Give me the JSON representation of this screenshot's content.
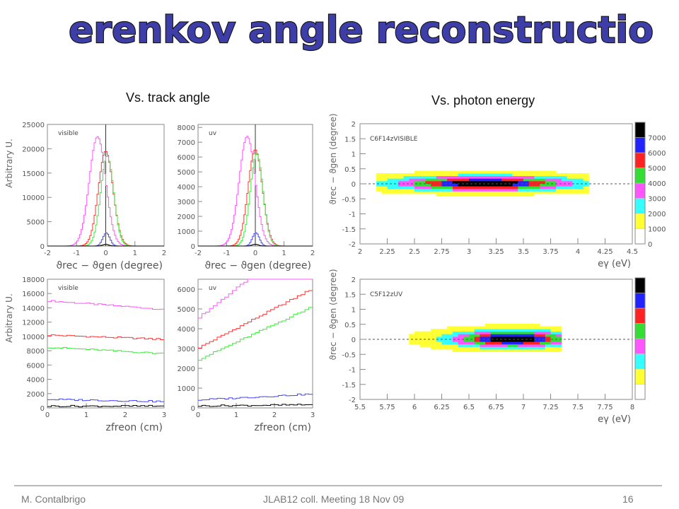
{
  "slide": {
    "title": "Cerenkov angle reconstruction",
    "subtitle_left": "Vs. track angle",
    "subtitle_right": "Vs. photon energy"
  },
  "footer": {
    "author": "M. Contalbrigo",
    "meeting": "JLAB12 coll. Meeting 18 Nov 09",
    "page": "16"
  },
  "colors": {
    "title_fill": "#3e3ea8",
    "magenta": "#ff55ff",
    "red": "#ff3333",
    "green": "#33ee33",
    "blue": "#4444ff",
    "black": "#000000"
  },
  "chart_data": [
    {
      "id": "p1",
      "type": "line",
      "label": "visible",
      "xlabel": "ϑrec − ϑgen  (degree)",
      "ylabel": "Arbitrary U.",
      "xlim": [
        -2,
        2
      ],
      "ylim": [
        0,
        25000
      ],
      "xticks": [
        -2,
        -1,
        0,
        1,
        2
      ],
      "yticks": [
        0,
        5000,
        10000,
        15000,
        20000,
        25000
      ],
      "vline": 0,
      "series": [
        {
          "color": "magenta",
          "shape": "gauss",
          "mu": -0.28,
          "sigma": 0.28,
          "amp": 22500
        },
        {
          "color": "red",
          "shape": "gauss",
          "mu": 0.0,
          "sigma": 0.25,
          "amp": 19500
        },
        {
          "color": "green",
          "shape": "gauss",
          "mu": 0.05,
          "sigma": 0.22,
          "amp": 18500
        },
        {
          "color": "blue",
          "shape": "gauss",
          "mu": 0.02,
          "sigma": 0.12,
          "amp": 2700
        },
        {
          "color": "black",
          "shape": "gauss",
          "mu": 0.0,
          "sigma": 0.1,
          "amp": 350
        }
      ]
    },
    {
      "id": "p2",
      "type": "line",
      "label": "uv",
      "xlabel": "ϑrec − ϑgen  (degree)",
      "ylabel": "",
      "xlim": [
        -2,
        2
      ],
      "ylim": [
        0,
        8200
      ],
      "xticks": [
        -2,
        -1,
        0,
        1,
        2
      ],
      "yticks": [
        0,
        1000,
        2000,
        3000,
        4000,
        5000,
        6000,
        7000,
        8000
      ],
      "vline": 0,
      "series": [
        {
          "color": "magenta",
          "shape": "gauss",
          "mu": -0.28,
          "sigma": 0.28,
          "amp": 7400
        },
        {
          "color": "red",
          "shape": "gauss",
          "mu": 0.0,
          "sigma": 0.25,
          "amp": 6500
        },
        {
          "color": "green",
          "shape": "gauss",
          "mu": 0.05,
          "sigma": 0.22,
          "amp": 6200
        },
        {
          "color": "blue",
          "shape": "gauss",
          "mu": 0.02,
          "sigma": 0.12,
          "amp": 900
        },
        {
          "color": "black",
          "shape": "gauss",
          "mu": 0.0,
          "sigma": 0.1,
          "amp": 120
        }
      ]
    },
    {
      "id": "p3",
      "type": "line",
      "label": "visible",
      "xlabel": "zfreon  (cm)",
      "ylabel": "Arbitrary U.",
      "xlim": [
        0,
        3
      ],
      "ylim": [
        0,
        18000
      ],
      "xticks": [
        0,
        1,
        2,
        3
      ],
      "yticks": [
        0,
        2000,
        4000,
        6000,
        8000,
        10000,
        12000,
        14000,
        16000,
        18000
      ],
      "series": [
        {
          "color": "magenta",
          "shape": "linear",
          "y0": 15000,
          "y1": 14600
        },
        {
          "color": "red",
          "shape": "linear",
          "y0": 10200,
          "y1": 10000
        },
        {
          "color": "green",
          "shape": "linear",
          "y0": 8500,
          "y1": 8200
        },
        {
          "color": "blue",
          "shape": "linear",
          "y0": 1200,
          "y1": 1100
        },
        {
          "color": "black",
          "shape": "linear",
          "y0": 250,
          "y1": 250
        }
      ]
    },
    {
      "id": "p4",
      "type": "line",
      "label": "uv",
      "xlabel": "zfreon  (cm)",
      "ylabel": "",
      "xlim": [
        0,
        3
      ],
      "ylim": [
        0,
        6500
      ],
      "xticks": [
        0,
        1,
        2,
        3
      ],
      "yticks": [
        0,
        1000,
        2000,
        3000,
        4000,
        5000,
        6000
      ],
      "series": [
        {
          "color": "magenta",
          "shape": "linear",
          "y0": 4500,
          "y1": 6000
        },
        {
          "color": "red",
          "shape": "linear",
          "y0": 3000,
          "y1": 4000
        },
        {
          "color": "green",
          "shape": "linear",
          "y0": 2400,
          "y1": 3300
        },
        {
          "color": "blue",
          "shape": "linear",
          "y0": 400,
          "y1": 500
        },
        {
          "color": "black",
          "shape": "linear",
          "y0": 100,
          "y1": 120
        }
      ]
    },
    {
      "id": "h1",
      "type": "heatmap",
      "label": "C6F14zVISIBLE",
      "xlabel": "eγ (eV)",
      "ylabel": "ϑrec − ϑgen (degree)",
      "xlim": [
        2,
        4.5
      ],
      "ylim": [
        -2,
        2
      ],
      "xticks": [
        2,
        2.25,
        2.5,
        2.75,
        3,
        3.25,
        3.5,
        3.75,
        4,
        4.25,
        4.5
      ],
      "yticks": [
        -2,
        -1.5,
        -1,
        -0.5,
        0,
        0.5,
        1,
        1.5,
        2
      ],
      "zticks": [
        0,
        1000,
        2000,
        3000,
        4000,
        5000,
        6000,
        7000
      ],
      "blob": {
        "x0": 2.15,
        "x1": 4.1,
        "mu": 3.15,
        "sx": 0.5,
        "y_mu": 0.02,
        "y_sigma": 0.15,
        "zmax": 7200
      }
    },
    {
      "id": "h2",
      "type": "heatmap",
      "label": "C5F12zUV",
      "xlabel": "eγ (eV)",
      "ylabel": "ϑrec − ϑgen (degree)",
      "xlim": [
        5.5,
        8
      ],
      "ylim": [
        -2,
        2
      ],
      "xticks": [
        5.5,
        5.75,
        6,
        6.25,
        6.5,
        6.75,
        7,
        7.25,
        7.5,
        7.75,
        8
      ],
      "yticks": [
        -2,
        -1.5,
        -1,
        -0.5,
        0,
        0.5,
        1,
        1.5,
        2
      ],
      "zticks": [],
      "blob": {
        "x0": 5.95,
        "x1": 7.35,
        "mu": 6.9,
        "sx": 0.35,
        "y_mu": 0.02,
        "y_sigma": 0.17,
        "zmax": 7200
      }
    }
  ]
}
